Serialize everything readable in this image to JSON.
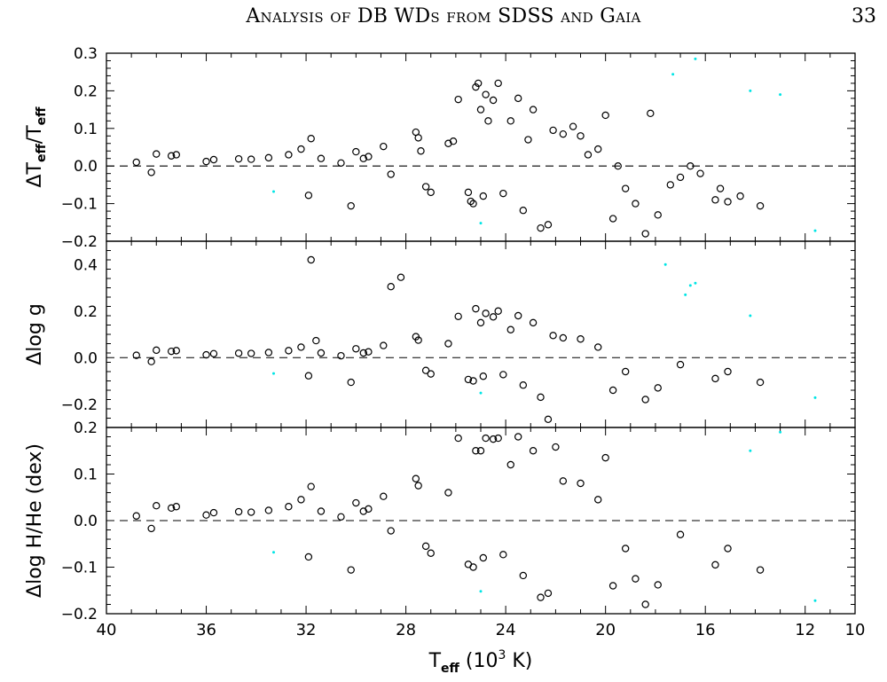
{
  "page": {
    "running_title": "Analysis of DB WDs from SDSS and Gaia",
    "page_number": "33"
  },
  "colors": {
    "sample_a": "#000000",
    "sample_b": "#00e5e5",
    "zero_line": "#000000"
  },
  "chart_data": {
    "type": "scatter",
    "shared_x": {
      "label": {
        "main": "T",
        "sub": "eff",
        "rest": " (10",
        "sup": "3",
        "end": " K)"
      },
      "range": [
        40,
        10
      ],
      "reversed": true,
      "ticks": [
        "40",
        "36",
        "32",
        "28",
        "24",
        "20",
        "16",
        "12",
        "10"
      ]
    },
    "panels": [
      {
        "id": "teff",
        "ylabel": {
          "main": "ΔT",
          "sub": "eff",
          "mid": "/T",
          "sub2": "eff"
        },
        "ylim": [
          -0.2,
          0.3
        ],
        "yticks": [
          "0.3",
          "0.2",
          "0.1",
          "0.0",
          "−0.1",
          "−0.2"
        ],
        "reference_line": 0.0,
        "series": [
          {
            "marker": "open-circle",
            "points": [
              [
                38.8,
                0.01
              ],
              [
                38.2,
                -0.017
              ],
              [
                38.0,
                0.032
              ],
              [
                37.4,
                0.027
              ],
              [
                37.2,
                0.03
              ],
              [
                36.0,
                0.012
              ],
              [
                35.7,
                0.017
              ],
              [
                34.7,
                0.019
              ],
              [
                34.2,
                0.018
              ],
              [
                33.5,
                0.022
              ],
              [
                32.7,
                0.03
              ],
              [
                32.2,
                0.045
              ],
              [
                31.9,
                -0.078
              ],
              [
                31.8,
                0.073
              ],
              [
                31.4,
                0.02
              ],
              [
                30.6,
                0.008
              ],
              [
                30.2,
                -0.106
              ],
              [
                30.0,
                0.038
              ],
              [
                29.7,
                0.02
              ],
              [
                29.5,
                0.025
              ],
              [
                28.9,
                0.052
              ],
              [
                28.6,
                -0.022
              ],
              [
                27.6,
                0.09
              ],
              [
                27.5,
                0.075
              ],
              [
                27.4,
                0.04
              ],
              [
                27.2,
                -0.055
              ],
              [
                27.0,
                -0.07
              ],
              [
                26.3,
                0.06
              ],
              [
                26.1,
                0.066
              ],
              [
                25.9,
                0.177
              ],
              [
                25.5,
                -0.07
              ],
              [
                25.4,
                -0.094
              ],
              [
                25.3,
                -0.1
              ],
              [
                25.2,
                0.21
              ],
              [
                25.1,
                0.22
              ],
              [
                25.0,
                0.15
              ],
              [
                24.9,
                -0.08
              ],
              [
                24.8,
                0.19
              ],
              [
                24.7,
                0.12
              ],
              [
                24.5,
                0.175
              ],
              [
                24.3,
                0.22
              ],
              [
                24.1,
                -0.073
              ],
              [
                23.8,
                0.12
              ],
              [
                23.5,
                0.18
              ],
              [
                23.3,
                -0.118
              ],
              [
                23.1,
                0.07
              ],
              [
                22.9,
                0.15
              ],
              [
                22.6,
                -0.165
              ],
              [
                22.3,
                -0.156
              ],
              [
                22.1,
                0.095
              ],
              [
                21.7,
                0.085
              ],
              [
                21.3,
                0.105
              ],
              [
                21.0,
                0.08
              ],
              [
                20.7,
                0.03
              ],
              [
                20.3,
                0.045
              ],
              [
                20.0,
                0.135
              ],
              [
                19.7,
                -0.14
              ],
              [
                19.5,
                0.0
              ],
              [
                19.2,
                -0.06
              ],
              [
                18.8,
                -0.1
              ],
              [
                18.4,
                -0.18
              ],
              [
                18.2,
                0.14
              ],
              [
                17.9,
                -0.13
              ],
              [
                17.4,
                -0.05
              ],
              [
                17.0,
                -0.03
              ],
              [
                16.6,
                0.0
              ],
              [
                16.2,
                -0.02
              ],
              [
                15.6,
                -0.09
              ],
              [
                15.4,
                -0.06
              ],
              [
                15.1,
                -0.095
              ],
              [
                14.6,
                -0.08
              ],
              [
                13.8,
                -0.106
              ]
            ]
          },
          {
            "marker": "dot",
            "points": [
              [
                33.3,
                -0.068
              ],
              [
                25.0,
                -0.152
              ],
              [
                17.3,
                0.244
              ],
              [
                16.4,
                0.285
              ],
              [
                13.0,
                0.19
              ],
              [
                11.6,
                -0.172
              ],
              [
                14.2,
                0.2
              ]
            ]
          }
        ]
      },
      {
        "id": "logg",
        "ylabel": {
          "main": "Δlog g"
        },
        "ylim": [
          -0.3,
          0.5
        ],
        "yticks": [
          "0.4",
          "0.2",
          "0.0",
          "−0.2"
        ],
        "reference_line": 0.0,
        "series": [
          {
            "marker": "open-circle",
            "points": [
              [
                38.8,
                0.01
              ],
              [
                38.2,
                -0.017
              ],
              [
                38.0,
                0.032
              ],
              [
                37.4,
                0.027
              ],
              [
                37.2,
                0.03
              ],
              [
                36.0,
                0.012
              ],
              [
                35.7,
                0.017
              ],
              [
                34.7,
                0.019
              ],
              [
                34.2,
                0.018
              ],
              [
                33.5,
                0.022
              ],
              [
                32.7,
                0.03
              ],
              [
                32.2,
                0.045
              ],
              [
                31.9,
                -0.078
              ],
              [
                31.8,
                0.42
              ],
              [
                31.6,
                0.073
              ],
              [
                31.4,
                0.02
              ],
              [
                30.6,
                0.008
              ],
              [
                30.2,
                -0.106
              ],
              [
                30.0,
                0.038
              ],
              [
                29.7,
                0.02
              ],
              [
                29.5,
                0.025
              ],
              [
                28.9,
                0.052
              ],
              [
                28.6,
                0.305
              ],
              [
                28.2,
                0.345
              ],
              [
                27.6,
                0.09
              ],
              [
                27.5,
                0.075
              ],
              [
                27.2,
                -0.055
              ],
              [
                27.0,
                -0.07
              ],
              [
                26.3,
                0.06
              ],
              [
                25.9,
                0.177
              ],
              [
                25.5,
                -0.094
              ],
              [
                25.3,
                -0.1
              ],
              [
                25.2,
                0.21
              ],
              [
                25.0,
                0.15
              ],
              [
                24.9,
                -0.08
              ],
              [
                24.8,
                0.19
              ],
              [
                24.5,
                0.175
              ],
              [
                24.3,
                0.2
              ],
              [
                24.1,
                -0.073
              ],
              [
                23.8,
                0.12
              ],
              [
                23.5,
                0.18
              ],
              [
                23.3,
                -0.118
              ],
              [
                22.9,
                0.15
              ],
              [
                22.6,
                -0.17
              ],
              [
                22.3,
                -0.265
              ],
              [
                22.1,
                0.095
              ],
              [
                21.7,
                0.085
              ],
              [
                21.0,
                0.08
              ],
              [
                20.3,
                0.045
              ],
              [
                19.7,
                -0.14
              ],
              [
                19.2,
                -0.06
              ],
              [
                18.4,
                -0.18
              ],
              [
                17.9,
                -0.13
              ],
              [
                17.0,
                -0.03
              ],
              [
                15.6,
                -0.09
              ],
              [
                15.1,
                -0.06
              ],
              [
                13.8,
                -0.106
              ]
            ]
          },
          {
            "marker": "dot",
            "points": [
              [
                33.3,
                -0.068
              ],
              [
                25.0,
                -0.152
              ],
              [
                17.6,
                0.4
              ],
              [
                16.6,
                0.31
              ],
              [
                16.4,
                0.32
              ],
              [
                16.8,
                0.27
              ],
              [
                11.6,
                -0.172
              ],
              [
                14.2,
                0.18
              ]
            ]
          }
        ]
      },
      {
        "id": "hhe",
        "ylabel": {
          "main": "Δlog H/He (dex)"
        },
        "ylim": [
          -0.2,
          0.2
        ],
        "yticks": [
          "0.2",
          "0.1",
          "0.0",
          "−0.1",
          "−0.2"
        ],
        "reference_line": 0.0,
        "series": [
          {
            "marker": "open-circle",
            "points": [
              [
                38.8,
                0.01
              ],
              [
                38.2,
                -0.017
              ],
              [
                38.0,
                0.032
              ],
              [
                37.4,
                0.027
              ],
              [
                37.2,
                0.03
              ],
              [
                36.0,
                0.012
              ],
              [
                35.7,
                0.017
              ],
              [
                34.7,
                0.019
              ],
              [
                34.2,
                0.018
              ],
              [
                33.5,
                0.022
              ],
              [
                32.7,
                0.03
              ],
              [
                32.2,
                0.045
              ],
              [
                31.9,
                -0.078
              ],
              [
                31.8,
                0.073
              ],
              [
                31.4,
                0.02
              ],
              [
                30.6,
                0.008
              ],
              [
                30.2,
                -0.106
              ],
              [
                30.0,
                0.038
              ],
              [
                29.7,
                0.02
              ],
              [
                29.5,
                0.025
              ],
              [
                28.9,
                0.052
              ],
              [
                28.6,
                -0.022
              ],
              [
                27.6,
                0.09
              ],
              [
                27.5,
                0.075
              ],
              [
                27.2,
                -0.055
              ],
              [
                27.0,
                -0.07
              ],
              [
                26.3,
                0.06
              ],
              [
                25.9,
                0.177
              ],
              [
                25.5,
                -0.094
              ],
              [
                25.3,
                -0.1
              ],
              [
                25.2,
                0.15
              ],
              [
                25.0,
                0.15
              ],
              [
                24.9,
                -0.08
              ],
              [
                24.8,
                0.177
              ],
              [
                24.5,
                0.175
              ],
              [
                24.3,
                0.177
              ],
              [
                24.1,
                -0.073
              ],
              [
                23.8,
                0.12
              ],
              [
                23.5,
                0.18
              ],
              [
                23.3,
                -0.118
              ],
              [
                22.9,
                0.15
              ],
              [
                22.6,
                -0.165
              ],
              [
                22.3,
                -0.156
              ],
              [
                22.0,
                0.158
              ],
              [
                21.7,
                0.085
              ],
              [
                21.0,
                0.08
              ],
              [
                20.3,
                0.045
              ],
              [
                20.0,
                0.135
              ],
              [
                19.7,
                -0.14
              ],
              [
                19.2,
                -0.06
              ],
              [
                18.8,
                -0.125
              ],
              [
                18.4,
                -0.18
              ],
              [
                17.9,
                -0.138
              ],
              [
                17.0,
                -0.03
              ],
              [
                15.6,
                -0.095
              ],
              [
                15.1,
                -0.06
              ],
              [
                13.8,
                -0.106
              ]
            ]
          },
          {
            "marker": "dot",
            "points": [
              [
                33.3,
                -0.068
              ],
              [
                25.0,
                -0.152
              ],
              [
                13.0,
                0.19
              ],
              [
                11.6,
                -0.172
              ],
              [
                14.2,
                0.15
              ]
            ]
          }
        ]
      }
    ]
  }
}
